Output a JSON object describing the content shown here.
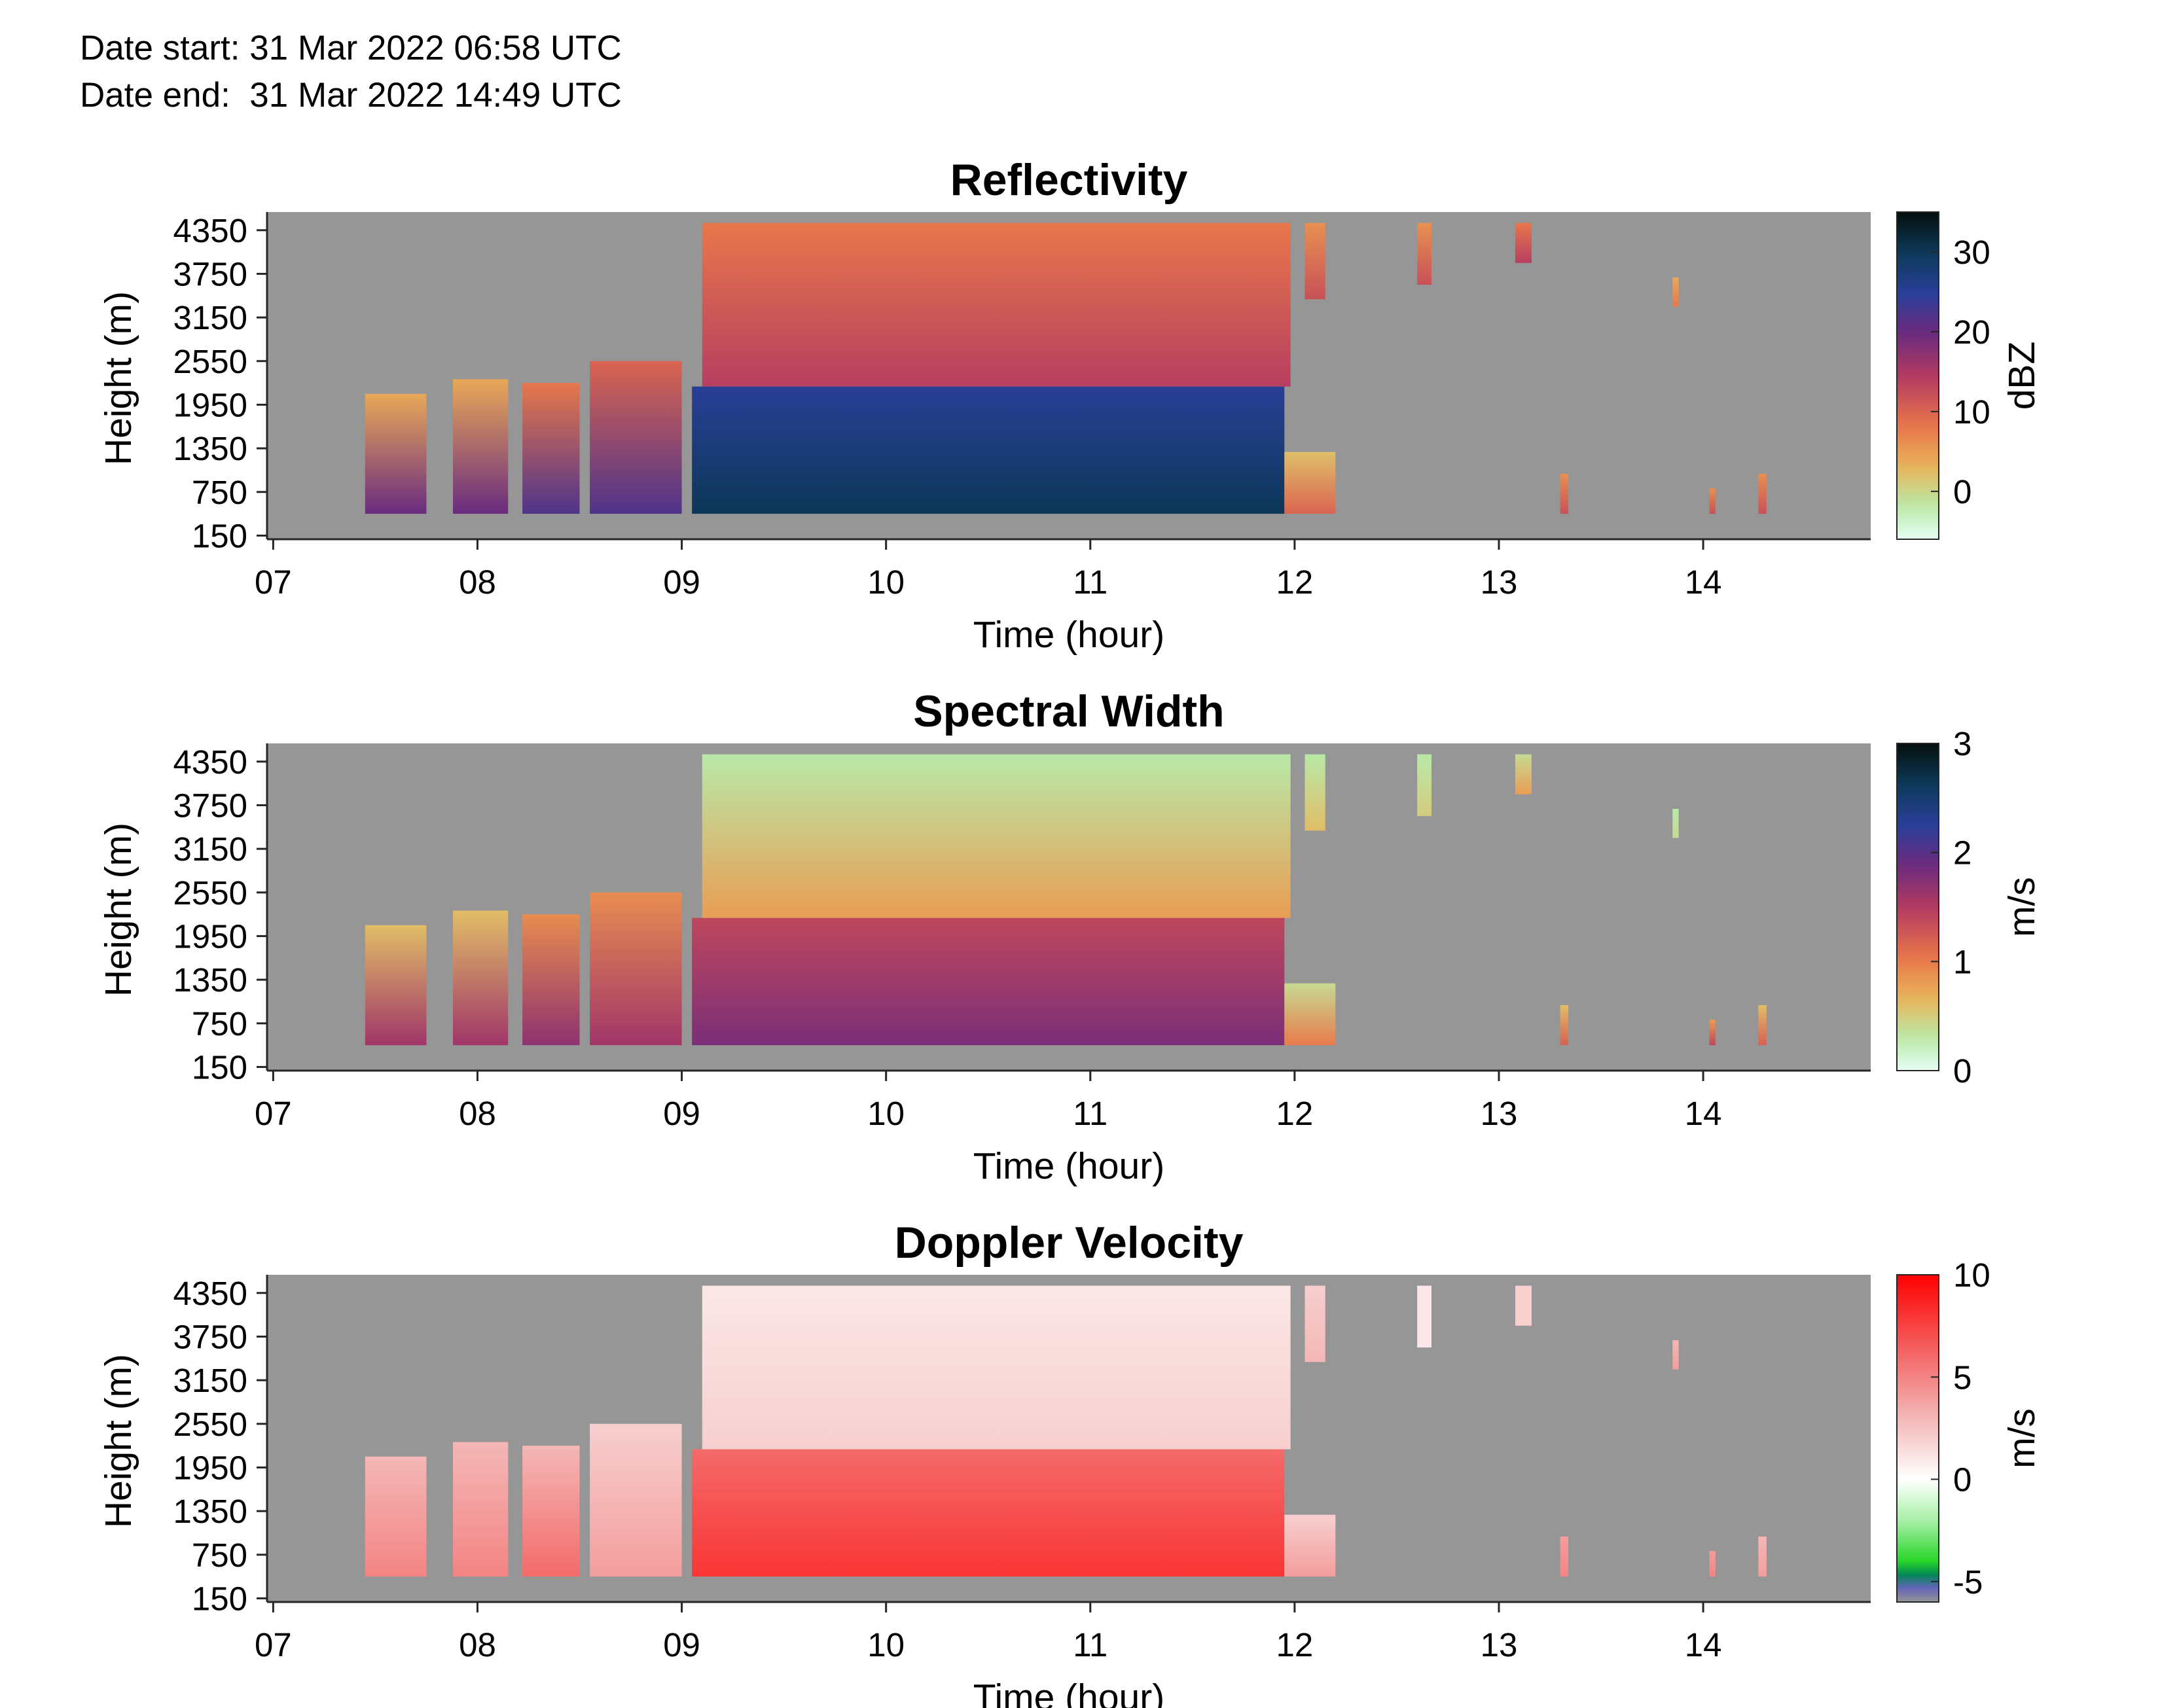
{
  "header": {
    "date_start": "Date start: 31 Mar 2022 06:58 UTC",
    "date_end": "Date end:  31 Mar 2022 14:49 UTC"
  },
  "colors": {
    "background_missing": "#969696",
    "axis": "#262626"
  },
  "chart_data": [
    {
      "type": "heatmap",
      "title": "Reflectivity",
      "xlabel": "Time (hour)",
      "ylabel": "Height (m)",
      "x_ticks": [
        "07",
        "08",
        "09",
        "10",
        "11",
        "12",
        "13",
        "14"
      ],
      "y_ticks": [
        "150",
        "750",
        "1350",
        "1950",
        "2550",
        "3150",
        "3750",
        "4350"
      ],
      "xlim": [
        6.97,
        14.82
      ],
      "ylim": [
        100,
        4600
      ],
      "colorbar": {
        "label": "dBZ",
        "ticks": [
          "0",
          "10",
          "20",
          "30"
        ],
        "range": [
          -6,
          35
        ],
        "colormap": "thermal-reversed"
      },
      "echo_layers": [
        {
          "x_start": 7.45,
          "x_end": 7.75,
          "bottom": 450,
          "top": 2100,
          "value_low": 20,
          "value_high": 4
        },
        {
          "x_start": 7.88,
          "x_end": 8.15,
          "bottom": 450,
          "top": 2300,
          "value_low": 20,
          "value_high": 4
        },
        {
          "x_start": 8.22,
          "x_end": 8.5,
          "bottom": 450,
          "top": 2250,
          "value_low": 22,
          "value_high": 8
        },
        {
          "x_start": 8.55,
          "x_end": 9.0,
          "bottom": 450,
          "top": 2550,
          "value_low": 22,
          "value_high": 10
        },
        {
          "x_start": 9.05,
          "x_end": 11.95,
          "bottom": 450,
          "top": 2200,
          "value_low": 30,
          "value_high": 25
        },
        {
          "x_start": 9.1,
          "x_end": 11.98,
          "bottom": 2200,
          "top": 4450,
          "value_low": 14,
          "value_high": 8
        },
        {
          "x_start": 11.95,
          "x_end": 12.2,
          "bottom": 450,
          "top": 1300,
          "value_low": 10,
          "value_high": 2
        },
        {
          "x_start": 12.05,
          "x_end": 12.15,
          "bottom": 3400,
          "top": 4450,
          "value_low": 12,
          "value_high": 6
        },
        {
          "x_start": 12.6,
          "x_end": 12.67,
          "bottom": 3600,
          "top": 4450,
          "value_low": 12,
          "value_high": 6
        },
        {
          "x_start": 13.08,
          "x_end": 13.16,
          "bottom": 3900,
          "top": 4450,
          "value_low": 14,
          "value_high": 8
        },
        {
          "x_start": 13.85,
          "x_end": 13.88,
          "bottom": 3300,
          "top": 3700,
          "value_low": 8,
          "value_high": 4
        },
        {
          "x_start": 13.3,
          "x_end": 13.34,
          "bottom": 450,
          "top": 1000,
          "value_low": 12,
          "value_high": 6
        },
        {
          "x_start": 14.03,
          "x_end": 14.06,
          "bottom": 450,
          "top": 800,
          "value_low": 12,
          "value_high": 6
        },
        {
          "x_start": 14.27,
          "x_end": 14.31,
          "bottom": 450,
          "top": 1000,
          "value_low": 12,
          "value_high": 6
        }
      ]
    },
    {
      "type": "heatmap",
      "title": "Spectral Width",
      "xlabel": "Time (hour)",
      "ylabel": "Height (m)",
      "x_ticks": [
        "07",
        "08",
        "09",
        "10",
        "11",
        "12",
        "13",
        "14"
      ],
      "y_ticks": [
        "150",
        "750",
        "1350",
        "1950",
        "2550",
        "3150",
        "3750",
        "4350"
      ],
      "xlim": [
        6.97,
        14.82
      ],
      "ylim": [
        100,
        4600
      ],
      "colorbar": {
        "label": "m/s",
        "ticks": [
          "0",
          "1",
          "2",
          "3"
        ],
        "range": [
          0,
          3
        ],
        "colormap": "thermal-reversed"
      },
      "echo_layers": [
        {
          "x_start": 7.45,
          "x_end": 7.75,
          "bottom": 450,
          "top": 2100,
          "value_low": 1.6,
          "value_high": 0.6
        },
        {
          "x_start": 7.88,
          "x_end": 8.15,
          "bottom": 450,
          "top": 2300,
          "value_low": 1.6,
          "value_high": 0.6
        },
        {
          "x_start": 8.22,
          "x_end": 8.5,
          "bottom": 450,
          "top": 2250,
          "value_low": 1.7,
          "value_high": 0.9
        },
        {
          "x_start": 8.55,
          "x_end": 9.0,
          "bottom": 450,
          "top": 2550,
          "value_low": 1.6,
          "value_high": 0.9
        },
        {
          "x_start": 9.05,
          "x_end": 11.95,
          "bottom": 450,
          "top": 2200,
          "value_low": 1.8,
          "value_high": 1.4
        },
        {
          "x_start": 9.1,
          "x_end": 11.98,
          "bottom": 2200,
          "top": 4450,
          "value_low": 0.8,
          "value_high": 0.3
        },
        {
          "x_start": 11.95,
          "x_end": 12.2,
          "bottom": 450,
          "top": 1300,
          "value_low": 1.0,
          "value_high": 0.4
        },
        {
          "x_start": 12.05,
          "x_end": 12.15,
          "bottom": 3400,
          "top": 4450,
          "value_low": 0.6,
          "value_high": 0.3
        },
        {
          "x_start": 12.6,
          "x_end": 12.67,
          "bottom": 3600,
          "top": 4450,
          "value_low": 0.5,
          "value_high": 0.3
        },
        {
          "x_start": 13.08,
          "x_end": 13.16,
          "bottom": 3900,
          "top": 4450,
          "value_low": 0.8,
          "value_high": 0.4
        },
        {
          "x_start": 13.85,
          "x_end": 13.88,
          "bottom": 3300,
          "top": 3700,
          "value_low": 0.4,
          "value_high": 0.3
        },
        {
          "x_start": 13.3,
          "x_end": 13.34,
          "bottom": 450,
          "top": 1000,
          "value_low": 1.2,
          "value_high": 0.6
        },
        {
          "x_start": 14.03,
          "x_end": 14.06,
          "bottom": 450,
          "top": 800,
          "value_low": 1.4,
          "value_high": 0.8
        },
        {
          "x_start": 14.27,
          "x_end": 14.31,
          "bottom": 450,
          "top": 1000,
          "value_low": 1.2,
          "value_high": 0.6
        }
      ]
    },
    {
      "type": "heatmap",
      "title": "Doppler Velocity",
      "xlabel": "Time (hour)",
      "ylabel": "Height (m)",
      "x_ticks": [
        "07",
        "08",
        "09",
        "10",
        "11",
        "12",
        "13",
        "14"
      ],
      "y_ticks": [
        "150",
        "750",
        "1350",
        "1950",
        "2550",
        "3150",
        "3750",
        "4350"
      ],
      "xlim": [
        6.97,
        14.82
      ],
      "ylim": [
        100,
        4600
      ],
      "colorbar": {
        "label": "m/s",
        "ticks": [
          "-5",
          "0",
          "5",
          "10"
        ],
        "range": [
          -6,
          10
        ],
        "colormap": "velocity"
      },
      "echo_layers": [
        {
          "x_start": 7.45,
          "x_end": 7.75,
          "bottom": 450,
          "top": 2100,
          "value_low": 5,
          "value_high": 3
        },
        {
          "x_start": 7.88,
          "x_end": 8.15,
          "bottom": 450,
          "top": 2300,
          "value_low": 5,
          "value_high": 3
        },
        {
          "x_start": 8.22,
          "x_end": 8.5,
          "bottom": 450,
          "top": 2250,
          "value_low": 6,
          "value_high": 3
        },
        {
          "x_start": 8.55,
          "x_end": 9.0,
          "bottom": 450,
          "top": 2550,
          "value_low": 4,
          "value_high": 2
        },
        {
          "x_start": 9.05,
          "x_end": 11.95,
          "bottom": 450,
          "top": 2200,
          "value_low": 8,
          "value_high": 6
        },
        {
          "x_start": 9.1,
          "x_end": 11.98,
          "bottom": 2200,
          "top": 4450,
          "value_low": 2,
          "value_high": 1
        },
        {
          "x_start": 11.95,
          "x_end": 12.2,
          "bottom": 450,
          "top": 1300,
          "value_low": 4,
          "value_high": 2
        },
        {
          "x_start": 12.05,
          "x_end": 12.15,
          "bottom": 3400,
          "top": 4450,
          "value_low": 3,
          "value_high": 2
        },
        {
          "x_start": 12.6,
          "x_end": 12.67,
          "bottom": 3600,
          "top": 4450,
          "value_low": 1,
          "value_high": 1
        },
        {
          "x_start": 13.08,
          "x_end": 13.16,
          "bottom": 3900,
          "top": 4450,
          "value_low": 2,
          "value_high": 2
        },
        {
          "x_start": 13.85,
          "x_end": 13.88,
          "bottom": 3300,
          "top": 3700,
          "value_low": 4,
          "value_high": 3
        },
        {
          "x_start": 13.3,
          "x_end": 13.34,
          "bottom": 450,
          "top": 1000,
          "value_low": 5,
          "value_high": 4
        },
        {
          "x_start": 14.03,
          "x_end": 14.06,
          "bottom": 450,
          "top": 800,
          "value_low": 5,
          "value_high": 4
        },
        {
          "x_start": 14.27,
          "x_end": 14.31,
          "bottom": 450,
          "top": 1000,
          "value_low": 4,
          "value_high": 3
        }
      ]
    }
  ]
}
